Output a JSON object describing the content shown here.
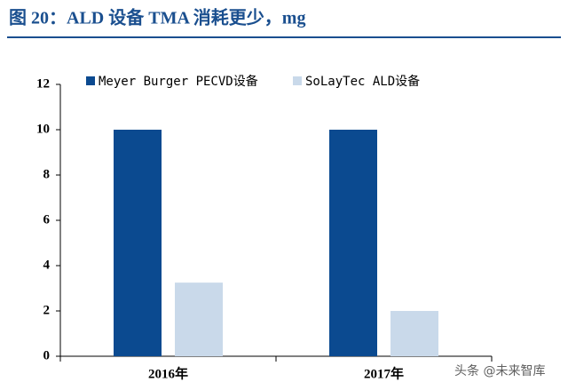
{
  "chart_data": {
    "type": "bar",
    "title": "图 20：ALD 设备 TMA 消耗更少，mg",
    "categories": [
      "2016年",
      "2017年"
    ],
    "series": [
      {
        "name": "Meyer Burger PECVD设备",
        "color": "#0b4a90",
        "values": [
          10,
          10
        ]
      },
      {
        "name": "SoLayTec ALD设备",
        "color": "#c9d9ea",
        "values": [
          3.25,
          2
        ]
      }
    ],
    "ylim": [
      0,
      12
    ],
    "yticks": [
      0,
      2,
      4,
      6,
      8,
      10,
      12
    ],
    "legend": "top",
    "watermark": "头条 @未来智库"
  }
}
